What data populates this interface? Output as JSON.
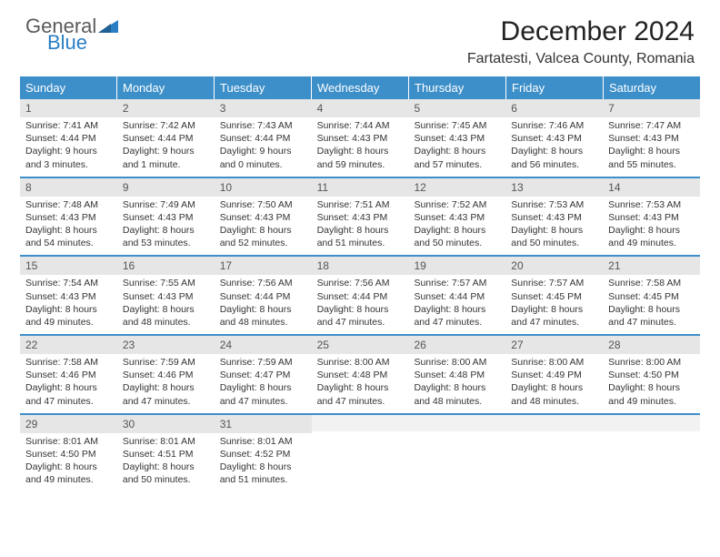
{
  "logo": {
    "text_general": "General",
    "text_blue": "Blue",
    "shape_color": "#2a7ec4",
    "text_color_general": "#5a5a5a",
    "text_color_blue": "#2a7ec4"
  },
  "title": "December 2024",
  "location": "Fartatesti, Valcea County, Romania",
  "colors": {
    "header_bg": "#3d8fc9",
    "header_text": "#ffffff",
    "daynum_bg": "#e6e6e6",
    "daynum_text": "#555555",
    "body_text": "#333333",
    "week_border": "#3d8fc9",
    "empty_bg": "#f2f2f2"
  },
  "typography": {
    "title_fontsize": 30,
    "location_fontsize": 16,
    "dayheader_fontsize": 13,
    "daynum_fontsize": 12,
    "cell_fontsize": 10.5
  },
  "day_labels": [
    "Sunday",
    "Monday",
    "Tuesday",
    "Wednesday",
    "Thursday",
    "Friday",
    "Saturday"
  ],
  "weeks": [
    [
      {
        "num": "1",
        "sunrise": "Sunrise: 7:41 AM",
        "sunset": "Sunset: 4:44 PM",
        "daylight": "Daylight: 9 hours and 3 minutes."
      },
      {
        "num": "2",
        "sunrise": "Sunrise: 7:42 AM",
        "sunset": "Sunset: 4:44 PM",
        "daylight": "Daylight: 9 hours and 1 minute."
      },
      {
        "num": "3",
        "sunrise": "Sunrise: 7:43 AM",
        "sunset": "Sunset: 4:44 PM",
        "daylight": "Daylight: 9 hours and 0 minutes."
      },
      {
        "num": "4",
        "sunrise": "Sunrise: 7:44 AM",
        "sunset": "Sunset: 4:43 PM",
        "daylight": "Daylight: 8 hours and 59 minutes."
      },
      {
        "num": "5",
        "sunrise": "Sunrise: 7:45 AM",
        "sunset": "Sunset: 4:43 PM",
        "daylight": "Daylight: 8 hours and 57 minutes."
      },
      {
        "num": "6",
        "sunrise": "Sunrise: 7:46 AM",
        "sunset": "Sunset: 4:43 PM",
        "daylight": "Daylight: 8 hours and 56 minutes."
      },
      {
        "num": "7",
        "sunrise": "Sunrise: 7:47 AM",
        "sunset": "Sunset: 4:43 PM",
        "daylight": "Daylight: 8 hours and 55 minutes."
      }
    ],
    [
      {
        "num": "8",
        "sunrise": "Sunrise: 7:48 AM",
        "sunset": "Sunset: 4:43 PM",
        "daylight": "Daylight: 8 hours and 54 minutes."
      },
      {
        "num": "9",
        "sunrise": "Sunrise: 7:49 AM",
        "sunset": "Sunset: 4:43 PM",
        "daylight": "Daylight: 8 hours and 53 minutes."
      },
      {
        "num": "10",
        "sunrise": "Sunrise: 7:50 AM",
        "sunset": "Sunset: 4:43 PM",
        "daylight": "Daylight: 8 hours and 52 minutes."
      },
      {
        "num": "11",
        "sunrise": "Sunrise: 7:51 AM",
        "sunset": "Sunset: 4:43 PM",
        "daylight": "Daylight: 8 hours and 51 minutes."
      },
      {
        "num": "12",
        "sunrise": "Sunrise: 7:52 AM",
        "sunset": "Sunset: 4:43 PM",
        "daylight": "Daylight: 8 hours and 50 minutes."
      },
      {
        "num": "13",
        "sunrise": "Sunrise: 7:53 AM",
        "sunset": "Sunset: 4:43 PM",
        "daylight": "Daylight: 8 hours and 50 minutes."
      },
      {
        "num": "14",
        "sunrise": "Sunrise: 7:53 AM",
        "sunset": "Sunset: 4:43 PM",
        "daylight": "Daylight: 8 hours and 49 minutes."
      }
    ],
    [
      {
        "num": "15",
        "sunrise": "Sunrise: 7:54 AM",
        "sunset": "Sunset: 4:43 PM",
        "daylight": "Daylight: 8 hours and 49 minutes."
      },
      {
        "num": "16",
        "sunrise": "Sunrise: 7:55 AM",
        "sunset": "Sunset: 4:43 PM",
        "daylight": "Daylight: 8 hours and 48 minutes."
      },
      {
        "num": "17",
        "sunrise": "Sunrise: 7:56 AM",
        "sunset": "Sunset: 4:44 PM",
        "daylight": "Daylight: 8 hours and 48 minutes."
      },
      {
        "num": "18",
        "sunrise": "Sunrise: 7:56 AM",
        "sunset": "Sunset: 4:44 PM",
        "daylight": "Daylight: 8 hours and 47 minutes."
      },
      {
        "num": "19",
        "sunrise": "Sunrise: 7:57 AM",
        "sunset": "Sunset: 4:44 PM",
        "daylight": "Daylight: 8 hours and 47 minutes."
      },
      {
        "num": "20",
        "sunrise": "Sunrise: 7:57 AM",
        "sunset": "Sunset: 4:45 PM",
        "daylight": "Daylight: 8 hours and 47 minutes."
      },
      {
        "num": "21",
        "sunrise": "Sunrise: 7:58 AM",
        "sunset": "Sunset: 4:45 PM",
        "daylight": "Daylight: 8 hours and 47 minutes."
      }
    ],
    [
      {
        "num": "22",
        "sunrise": "Sunrise: 7:58 AM",
        "sunset": "Sunset: 4:46 PM",
        "daylight": "Daylight: 8 hours and 47 minutes."
      },
      {
        "num": "23",
        "sunrise": "Sunrise: 7:59 AM",
        "sunset": "Sunset: 4:46 PM",
        "daylight": "Daylight: 8 hours and 47 minutes."
      },
      {
        "num": "24",
        "sunrise": "Sunrise: 7:59 AM",
        "sunset": "Sunset: 4:47 PM",
        "daylight": "Daylight: 8 hours and 47 minutes."
      },
      {
        "num": "25",
        "sunrise": "Sunrise: 8:00 AM",
        "sunset": "Sunset: 4:48 PM",
        "daylight": "Daylight: 8 hours and 47 minutes."
      },
      {
        "num": "26",
        "sunrise": "Sunrise: 8:00 AM",
        "sunset": "Sunset: 4:48 PM",
        "daylight": "Daylight: 8 hours and 48 minutes."
      },
      {
        "num": "27",
        "sunrise": "Sunrise: 8:00 AM",
        "sunset": "Sunset: 4:49 PM",
        "daylight": "Daylight: 8 hours and 48 minutes."
      },
      {
        "num": "28",
        "sunrise": "Sunrise: 8:00 AM",
        "sunset": "Sunset: 4:50 PM",
        "daylight": "Daylight: 8 hours and 49 minutes."
      }
    ],
    [
      {
        "num": "29",
        "sunrise": "Sunrise: 8:01 AM",
        "sunset": "Sunset: 4:50 PM",
        "daylight": "Daylight: 8 hours and 49 minutes."
      },
      {
        "num": "30",
        "sunrise": "Sunrise: 8:01 AM",
        "sunset": "Sunset: 4:51 PM",
        "daylight": "Daylight: 8 hours and 50 minutes."
      },
      {
        "num": "31",
        "sunrise": "Sunrise: 8:01 AM",
        "sunset": "Sunset: 4:52 PM",
        "daylight": "Daylight: 8 hours and 51 minutes."
      },
      {
        "empty": true
      },
      {
        "empty": true
      },
      {
        "empty": true
      },
      {
        "empty": true
      }
    ]
  ]
}
